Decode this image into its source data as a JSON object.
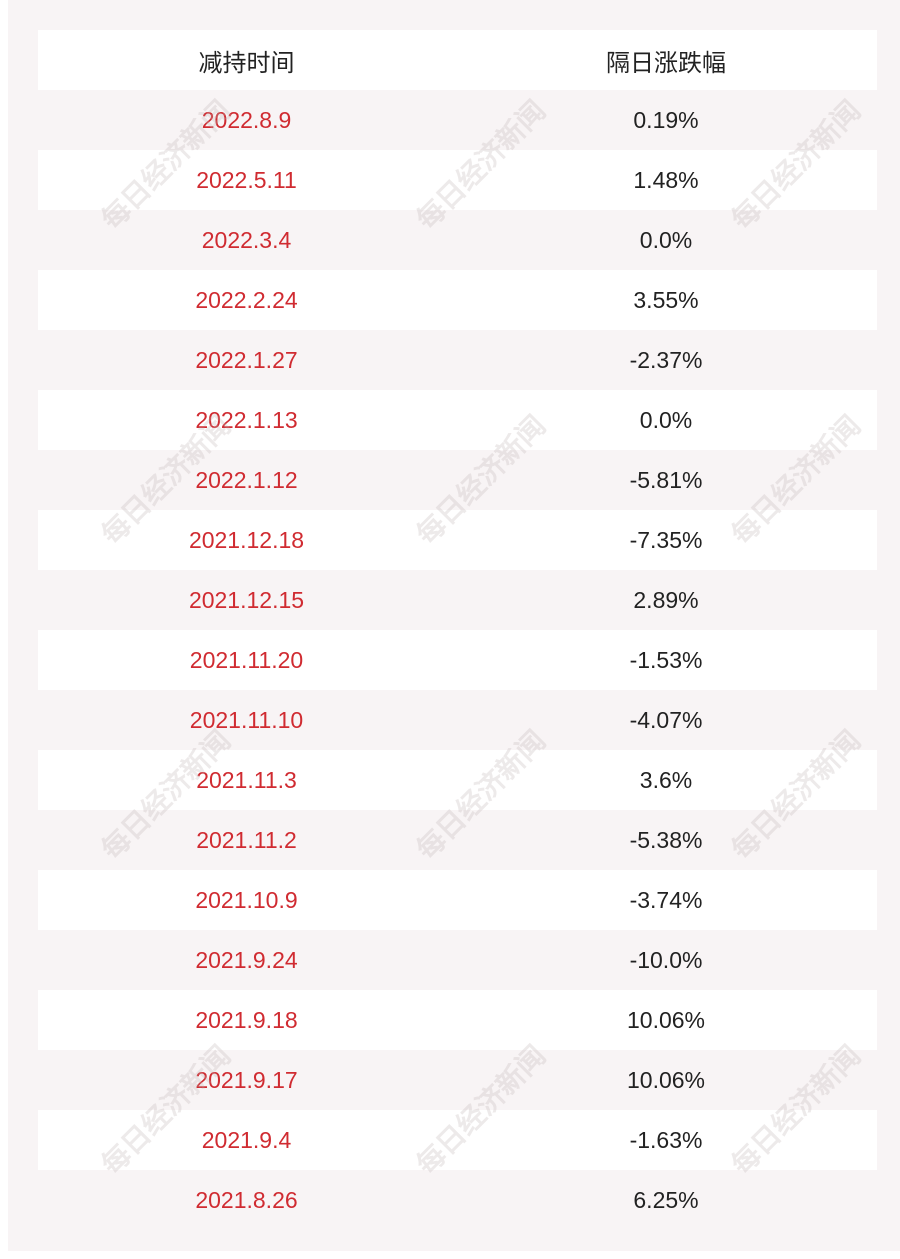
{
  "table": {
    "header": [
      "减持时间",
      "隔日涨跌幅"
    ],
    "rows": [
      [
        "2022.8.9",
        "0.19%"
      ],
      [
        "2022.5.11",
        "1.48%"
      ],
      [
        "2022.3.4",
        "0.0%"
      ],
      [
        "2022.2.24",
        "3.55%"
      ],
      [
        "2022.1.27",
        "-2.37%"
      ],
      [
        "2022.1.13",
        "0.0%"
      ],
      [
        "2022.1.12",
        "-5.81%"
      ],
      [
        "2021.12.18",
        "-7.35%"
      ],
      [
        "2021.12.15",
        "2.89%"
      ],
      [
        "2021.11.20",
        "-1.53%"
      ],
      [
        "2021.11.10",
        "-4.07%"
      ],
      [
        "2021.11.3",
        "3.6%"
      ],
      [
        "2021.11.2",
        "-5.38%"
      ],
      [
        "2021.10.9",
        "-3.74%"
      ],
      [
        "2021.9.24",
        "-10.0%"
      ],
      [
        "2021.9.18",
        "10.06%"
      ],
      [
        "2021.9.17",
        "10.06%"
      ],
      [
        "2021.9.4",
        "-1.63%"
      ],
      [
        "2021.8.26",
        "6.25%"
      ]
    ]
  },
  "watermark": "每日经济新闻"
}
